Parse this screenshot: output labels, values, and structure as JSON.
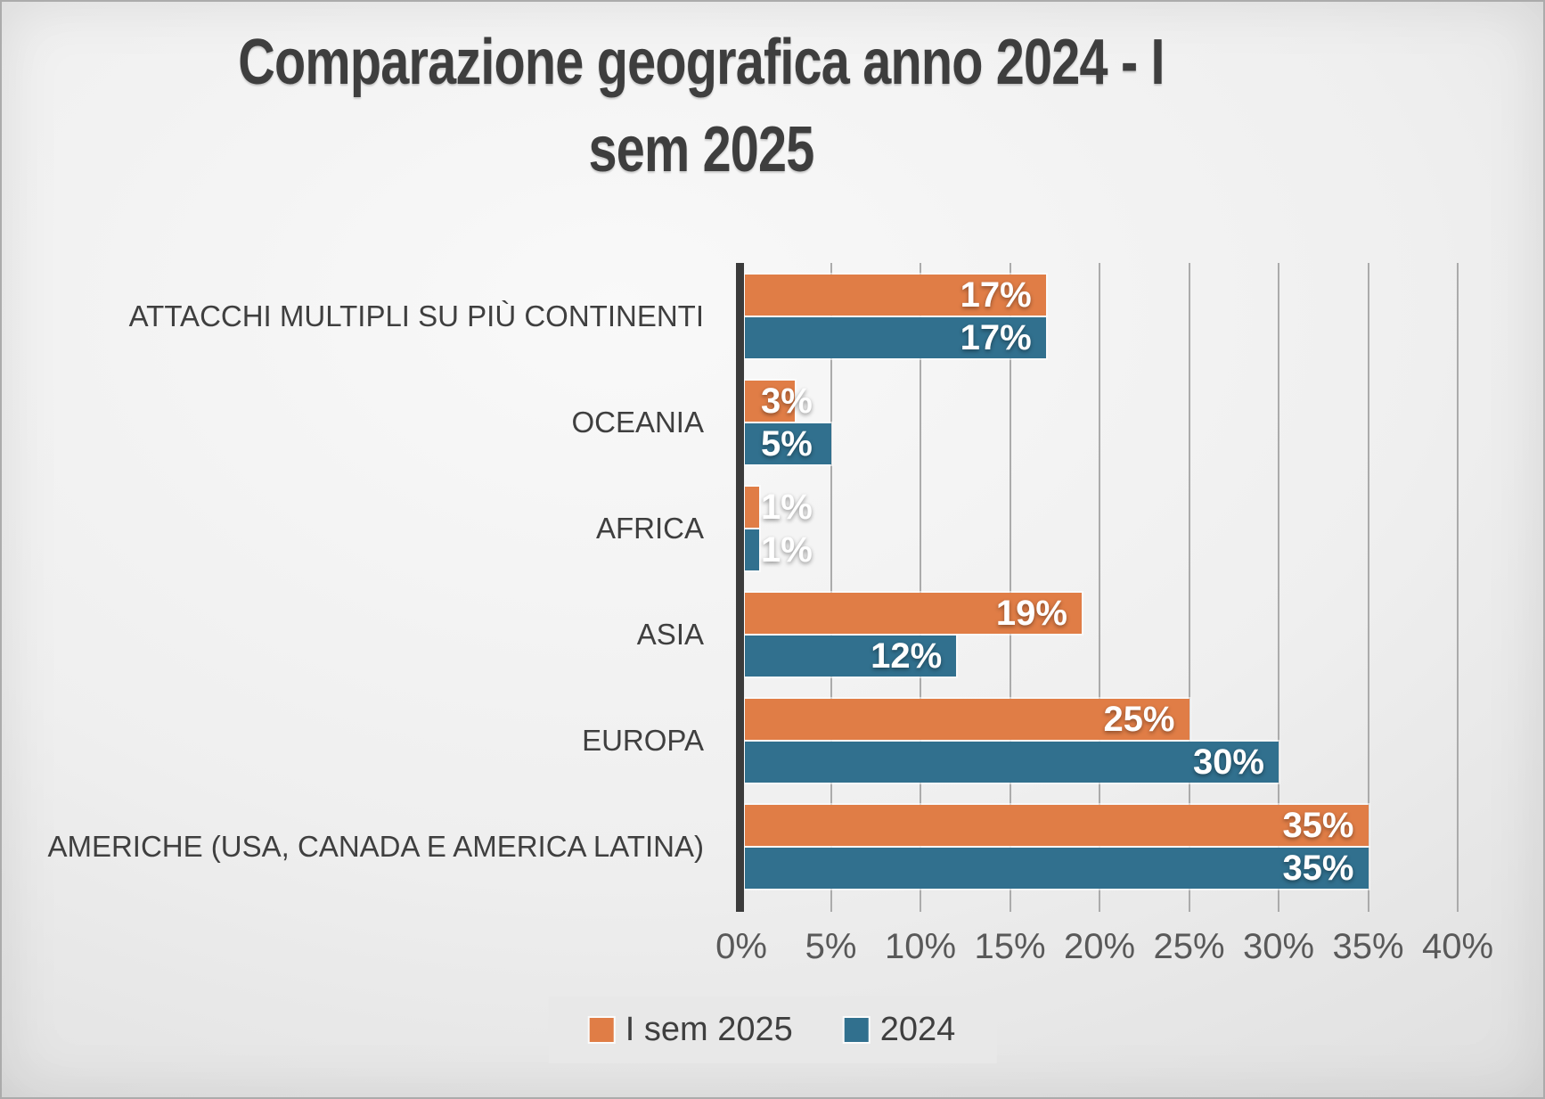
{
  "title_lines": [
    "Comparazione geografica anno 2024 - I",
    "sem 2025"
  ],
  "chart_data": {
    "type": "bar",
    "orientation": "horizontal",
    "title": "Comparazione geografica anno 2024 - I sem 2025",
    "categories": [
      "ATTACCHI MULTIPLI SU PIÙ CONTINENTI",
      "OCEANIA",
      "AFRICA",
      "ASIA",
      "EUROPA",
      "AMERICHE (USA, CANADA E AMERICA LATINA)"
    ],
    "series": [
      {
        "name": "I sem 2025",
        "color": "#E07D46",
        "values": [
          17,
          3,
          1,
          19,
          25,
          35
        ],
        "labels": [
          "17%",
          "3%",
          "1%",
          "19%",
          "25%",
          "35%"
        ]
      },
      {
        "name": "2024",
        "color": "#31708E",
        "values": [
          17,
          5,
          1,
          12,
          30,
          35
        ],
        "labels": [
          "17%",
          "5%",
          "1%",
          "12%",
          "30%",
          "35%"
        ]
      }
    ],
    "xlabel": "",
    "ylabel": "",
    "xlim": [
      0,
      40
    ],
    "x_ticks": [
      "0%",
      "5%",
      "10%",
      "15%",
      "20%",
      "25%",
      "30%",
      "35%",
      "40%"
    ],
    "grid": true,
    "legend_position": "bottom",
    "colors": {
      "grid": "#ababab",
      "axis": "#3b3b3b",
      "tick_text": "#595959",
      "category_text": "#3f3f3f",
      "value_text": "#ffffff",
      "title_text": "#3e3e3e"
    }
  }
}
